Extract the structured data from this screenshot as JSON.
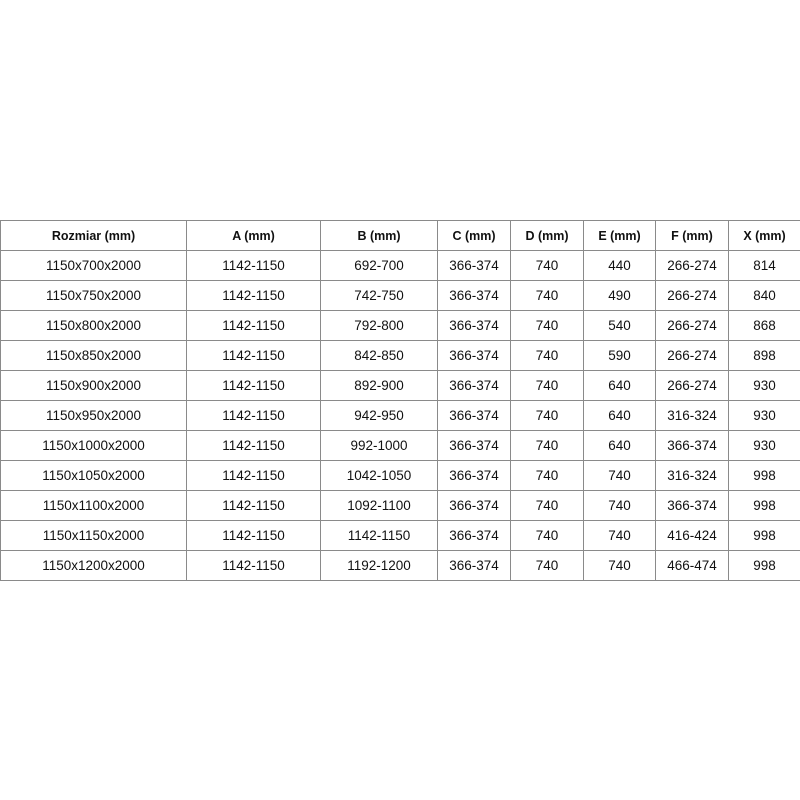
{
  "table": {
    "headers": [
      "Rozmiar (mm)",
      "A (mm)",
      "B (mm)",
      "C (mm)",
      "D (mm)",
      "E (mm)",
      "F (mm)",
      "X (mm)"
    ],
    "rows": [
      [
        "1150x700x2000",
        "1142-1150",
        "692-700",
        "366-374",
        "740",
        "440",
        "266-274",
        "814"
      ],
      [
        "1150x750x2000",
        "1142-1150",
        "742-750",
        "366-374",
        "740",
        "490",
        "266-274",
        "840"
      ],
      [
        "1150x800x2000",
        "1142-1150",
        "792-800",
        "366-374",
        "740",
        "540",
        "266-274",
        "868"
      ],
      [
        "1150x850x2000",
        "1142-1150",
        "842-850",
        "366-374",
        "740",
        "590",
        "266-274",
        "898"
      ],
      [
        "1150x900x2000",
        "1142-1150",
        "892-900",
        "366-374",
        "740",
        "640",
        "266-274",
        "930"
      ],
      [
        "1150x950x2000",
        "1142-1150",
        "942-950",
        "366-374",
        "740",
        "640",
        "316-324",
        "930"
      ],
      [
        "1150x1000x2000",
        "1142-1150",
        "992-1000",
        "366-374",
        "740",
        "640",
        "366-374",
        "930"
      ],
      [
        "1150x1050x2000",
        "1142-1150",
        "1042-1050",
        "366-374",
        "740",
        "740",
        "316-324",
        "998"
      ],
      [
        "1150x1100x2000",
        "1142-1150",
        "1092-1100",
        "366-374",
        "740",
        "740",
        "366-374",
        "998"
      ],
      [
        "1150x1150x2000",
        "1142-1150",
        "1142-1150",
        "366-374",
        "740",
        "740",
        "416-424",
        "998"
      ],
      [
        "1150x1200x2000",
        "1142-1150",
        "1192-1200",
        "366-374",
        "740",
        "740",
        "466-474",
        "998"
      ]
    ]
  }
}
